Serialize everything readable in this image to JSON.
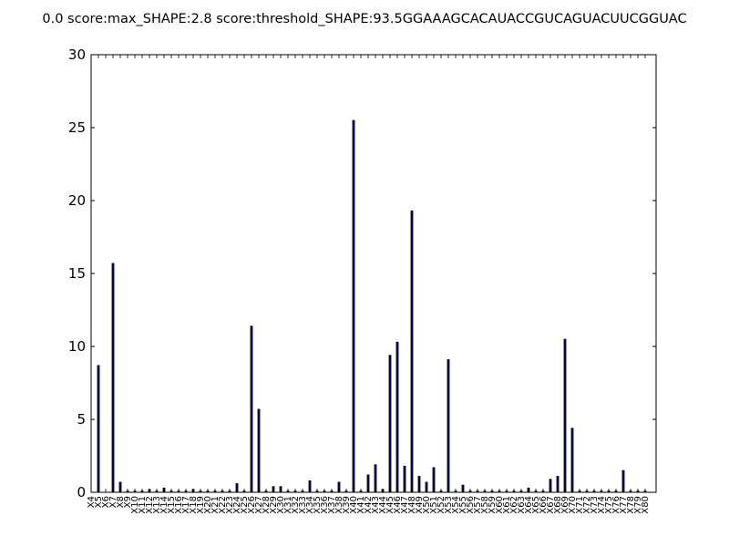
{
  "chart_data": {
    "type": "bar",
    "title": "0.0 score:max_SHAPE:2.8 score:threshold_SHAPE:93.5GGAAAGCACAUACCGUCAGUACUUCGGUAC",
    "xlabel": "",
    "ylabel": "",
    "ylim": [
      0,
      30
    ],
    "yticks": [
      0,
      5,
      10,
      15,
      20,
      25,
      30
    ],
    "grid": false,
    "bar_color": "#000080",
    "categories": [
      "X4",
      "X5",
      "X6",
      "X7",
      "X8",
      "X9",
      "X10",
      "X11",
      "X12",
      "X13",
      "X14",
      "X15",
      "X16",
      "X17",
      "X18",
      "X19",
      "X20",
      "X21",
      "X22",
      "X23",
      "X24",
      "X25",
      "X26",
      "X27",
      "X28",
      "X29",
      "X30",
      "X31",
      "X32",
      "X33",
      "X34",
      "X35",
      "X36",
      "X37",
      "X38",
      "X39",
      "X40",
      "X41",
      "X42",
      "X43",
      "X44",
      "X45",
      "X46",
      "X47",
      "X48",
      "X49",
      "X50",
      "X51",
      "X52",
      "X53",
      "X54",
      "X55",
      "X56",
      "X57",
      "X58",
      "X59",
      "X60",
      "X61",
      "X62",
      "X63",
      "X64",
      "X65",
      "X66",
      "X67",
      "X68",
      "X69",
      "X70",
      "X71",
      "X72",
      "X73",
      "X74",
      "X75",
      "X76",
      "X77",
      "X78",
      "X79",
      "X80"
    ],
    "values": [
      0,
      8.7,
      0,
      15.7,
      0.7,
      0.1,
      0.1,
      0.1,
      0.2,
      0.1,
      0.3,
      0.1,
      0.1,
      0.1,
      0.2,
      0.1,
      0.1,
      0.1,
      0.1,
      0.1,
      0.6,
      0.1,
      11.4,
      5.7,
      0.1,
      0.4,
      0.4,
      0.1,
      0.1,
      0.1,
      0.8,
      0.1,
      0.1,
      0.1,
      0.7,
      0.1,
      25.5,
      0.1,
      1.2,
      1.9,
      0.2,
      9.4,
      10.3,
      1.8,
      19.3,
      1.1,
      0.7,
      1.7,
      0.1,
      9.1,
      0.1,
      0.5,
      0.1,
      0.1,
      0.1,
      0.1,
      0.1,
      0.1,
      0.1,
      0.1,
      0.3,
      0.1,
      0.1,
      0.9,
      1.1,
      10.5,
      4.4,
      0.1,
      0.1,
      0.1,
      0.1,
      0.1,
      0.1,
      1.5,
      0.1,
      0.1,
      0.1
    ]
  }
}
